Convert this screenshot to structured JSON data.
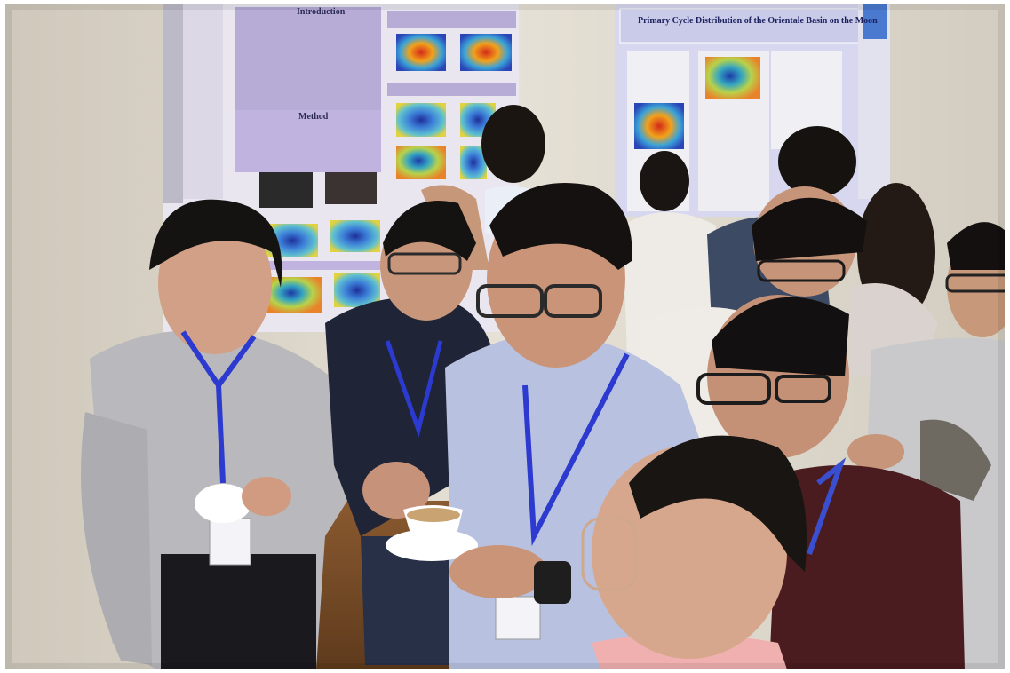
{
  "scene": {
    "left_poster": {
      "headings": [
        "Introduction",
        "Method"
      ]
    },
    "right_poster": {
      "title": "Primary Cycle Distribution of the Orientale Basin on the Moon"
    }
  }
}
